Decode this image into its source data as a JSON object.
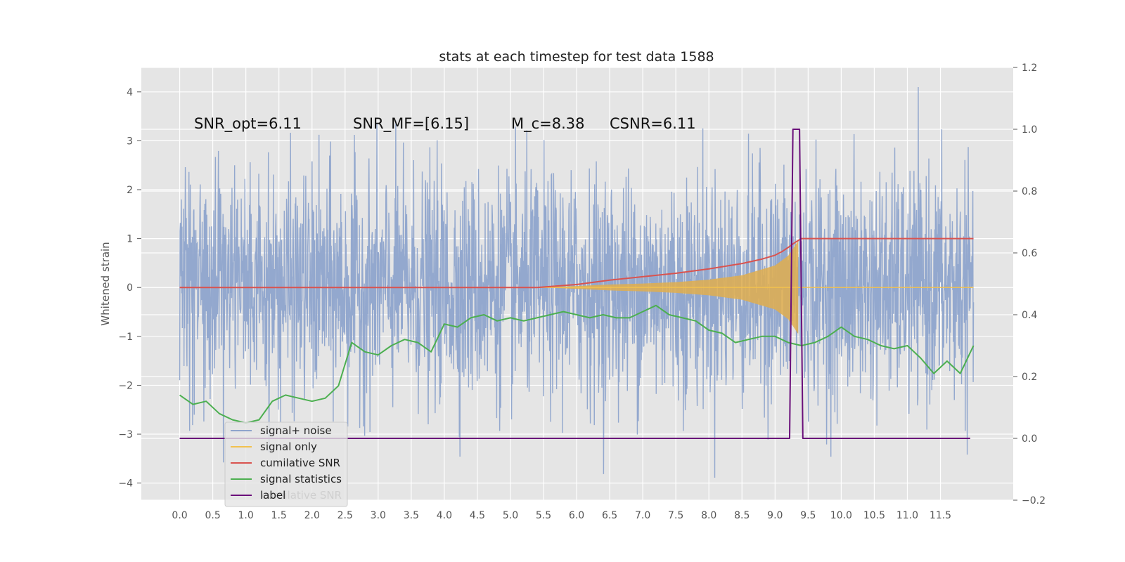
{
  "chart_data": {
    "type": "line",
    "title": "stats at each timestep for test data 1588",
    "ylabel": "Whitened strain",
    "xlim": [
      -0.58,
      12.6
    ],
    "ylim": [
      -4.35,
      4.5
    ],
    "y2lim": [
      -0.2,
      1.2
    ],
    "xticks": [
      "0.0",
      "0.5",
      "1.0",
      "1.5",
      "2.0",
      "2.5",
      "3.0",
      "3.5",
      "4.0",
      "4.5",
      "5.0",
      "5.5",
      "6.0",
      "6.5",
      "7.0",
      "7.5",
      "8.0",
      "8.5",
      "9.0",
      "9.5",
      "10.0",
      "10.5",
      "11.0",
      "11.5"
    ],
    "yticks": [
      "4",
      "3",
      "2",
      "1",
      "0",
      "−1",
      "−2",
      "−3",
      "−4"
    ],
    "y2ticks": [
      "1.2",
      "1.0",
      "0.8",
      "0.6",
      "0.4",
      "0.2",
      "0.0",
      "−0.2"
    ],
    "grid": true,
    "legend_position": "lower-left",
    "annotations": {
      "snr_opt": "SNR_opt=6.11",
      "snr_mf": "SNR_MF=[6.15]",
      "mc": "M_c=8.38",
      "csnr": "CSNR=6.11"
    },
    "legend": [
      {
        "label": "signal+ noise",
        "color": "#8ea4cc"
      },
      {
        "label": "signal only",
        "color": "#f2c14e"
      },
      {
        "label": "cumilative SNR",
        "color": "#d9534f"
      },
      {
        "label": "signal statistics",
        "color": "#4caf50"
      },
      {
        "label": "label",
        "color": "#6a0f7a"
      }
    ],
    "legend_hidden_text": "cumilative SNR",
    "series": [
      {
        "name": "signal+ noise",
        "axis": "left",
        "color": "#8ea4cc",
        "x_range": [
          0.0,
          12.0
        ],
        "sigma": 1.0,
        "value_range": [
          -4.0,
          4.1
        ]
      },
      {
        "name": "signal only",
        "axis": "left",
        "color": "#f2c14e",
        "envelope_x": [
          5.5,
          6.0,
          6.5,
          7.0,
          7.5,
          8.0,
          8.5,
          9.0,
          9.2,
          9.3,
          9.35
        ],
        "envelope_y": [
          0.0,
          0.03,
          0.06,
          0.08,
          0.11,
          0.16,
          0.25,
          0.45,
          0.65,
          0.85,
          0.95
        ]
      },
      {
        "name": "cumilative SNR",
        "axis": "left",
        "color": "#d9534f",
        "x": [
          0.0,
          5.4,
          6.0,
          6.5,
          7.0,
          7.5,
          8.0,
          8.5,
          8.8,
          9.0,
          9.1,
          9.2,
          9.3,
          9.4,
          12.0
        ],
        "y": [
          0.0,
          0.0,
          0.06,
          0.15,
          0.22,
          0.29,
          0.38,
          0.49,
          0.58,
          0.66,
          0.73,
          0.82,
          0.92,
          1.0,
          1.0
        ]
      },
      {
        "name": "signal statistics",
        "axis": "right",
        "color": "#4caf50",
        "x": [
          0.0,
          0.2,
          0.4,
          0.6,
          0.8,
          1.0,
          1.2,
          1.4,
          1.6,
          1.8,
          2.0,
          2.2,
          2.4,
          2.6,
          2.8,
          3.0,
          3.2,
          3.4,
          3.6,
          3.8,
          4.0,
          4.2,
          4.4,
          4.6,
          4.8,
          5.0,
          5.2,
          5.4,
          5.6,
          5.8,
          6.0,
          6.2,
          6.4,
          6.6,
          6.8,
          7.0,
          7.2,
          7.4,
          7.6,
          7.8,
          8.0,
          8.2,
          8.4,
          8.6,
          8.8,
          9.0,
          9.2,
          9.4,
          9.6,
          9.8,
          10.0,
          10.2,
          10.4,
          10.6,
          10.8,
          11.0,
          11.2,
          11.4,
          11.6,
          11.8,
          12.0
        ],
        "y": [
          0.14,
          0.11,
          0.12,
          0.08,
          0.06,
          0.05,
          0.06,
          0.12,
          0.14,
          0.13,
          0.12,
          0.13,
          0.17,
          0.31,
          0.28,
          0.27,
          0.3,
          0.32,
          0.31,
          0.28,
          0.37,
          0.36,
          0.39,
          0.4,
          0.38,
          0.39,
          0.38,
          0.39,
          0.4,
          0.41,
          0.4,
          0.39,
          0.4,
          0.39,
          0.39,
          0.41,
          0.43,
          0.4,
          0.39,
          0.38,
          0.35,
          0.34,
          0.31,
          0.32,
          0.33,
          0.33,
          0.31,
          0.3,
          0.31,
          0.33,
          0.36,
          0.33,
          0.32,
          0.3,
          0.29,
          0.3,
          0.26,
          0.21,
          0.25,
          0.21,
          0.3
        ]
      },
      {
        "name": "label",
        "axis": "right",
        "color": "#6a0f7a",
        "x": [
          0.0,
          9.22,
          9.27,
          9.37,
          9.42,
          11.95
        ],
        "y": [
          0.0,
          0.0,
          1.0,
          1.0,
          0.0,
          0.0
        ]
      }
    ]
  }
}
